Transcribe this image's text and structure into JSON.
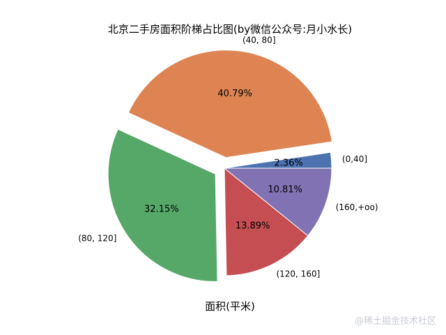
{
  "chart_data": {
    "type": "pie",
    "title": "北京二手房面积阶梯占比图(by微信公众号:月小水长)",
    "xlabel": "面积(平米)",
    "slices": [
      {
        "label": "(0,40]",
        "value": 2.36,
        "pct_label": "2.36%",
        "color": "#4c72b0"
      },
      {
        "label": "(40, 80]",
        "value": 40.79,
        "pct_label": "40.79%",
        "color": "#dd8452"
      },
      {
        "label": "(80, 120]",
        "value": 32.15,
        "pct_label": "32.15%",
        "color": "#55a868"
      },
      {
        "label": "(120, 160]",
        "value": 13.89,
        "pct_label": "13.89%",
        "color": "#c44e52"
      },
      {
        "label": "(160,+oo)",
        "value": 10.81,
        "pct_label": "10.81%",
        "color": "#8172b3"
      }
    ],
    "explode": [
      0,
      0.1,
      0.1,
      0,
      0
    ],
    "start_angle_deg": 0,
    "direction": "counterclockwise"
  },
  "watermark": "@稀土掘金技术社区"
}
